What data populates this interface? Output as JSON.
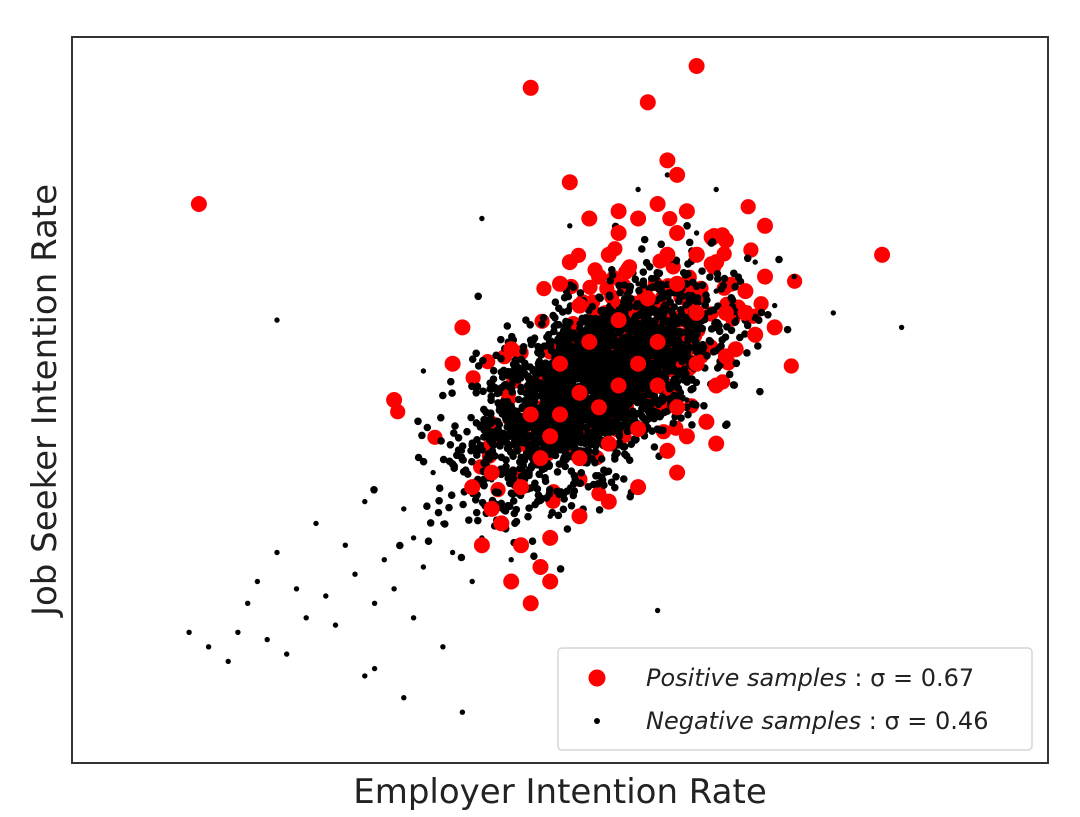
{
  "chart_data": {
    "type": "scatter",
    "title": "",
    "xlabel": "Employer Intention Rate",
    "ylabel": "Job Seeker Intention Rate",
    "xlim": [
      0,
      1
    ],
    "ylim": [
      0,
      1
    ],
    "grid": false,
    "ticks_visible": false,
    "legend": {
      "placement": "bottom-right",
      "entries": [
        {
          "series": "positive",
          "name_italic": "Positive samples",
          "sigma_text": " : σ = 0.67"
        },
        {
          "series": "negative",
          "name_italic": "Negative samples",
          "sigma_text": " : σ = 0.46"
        }
      ]
    },
    "colors": {
      "positive": "#ff0000",
      "negative": "#000000",
      "frame": "#333333",
      "legend_border": "#d6d6d6"
    },
    "series": [
      {
        "key": "negative",
        "sigma": 0.46,
        "marker": "small-dot",
        "points": [
          [
            0.12,
            0.18
          ],
          [
            0.14,
            0.16
          ],
          [
            0.16,
            0.14
          ],
          [
            0.17,
            0.18
          ],
          [
            0.18,
            0.22
          ],
          [
            0.19,
            0.25
          ],
          [
            0.2,
            0.17
          ],
          [
            0.21,
            0.29
          ],
          [
            0.22,
            0.15
          ],
          [
            0.23,
            0.24
          ],
          [
            0.24,
            0.2
          ],
          [
            0.25,
            0.33
          ],
          [
            0.26,
            0.23
          ],
          [
            0.27,
            0.19
          ],
          [
            0.28,
            0.3
          ],
          [
            0.29,
            0.26
          ],
          [
            0.3,
            0.36
          ],
          [
            0.31,
            0.13
          ],
          [
            0.31,
            0.22
          ],
          [
            0.32,
            0.28
          ],
          [
            0.33,
            0.24
          ],
          [
            0.34,
            0.35
          ],
          [
            0.35,
            0.31
          ],
          [
            0.35,
            0.2
          ],
          [
            0.36,
            0.27
          ],
          [
            0.37,
            0.4
          ],
          [
            0.38,
            0.33
          ],
          [
            0.38,
            0.16
          ],
          [
            0.39,
            0.29
          ],
          [
            0.4,
            0.43
          ],
          [
            0.41,
            0.37
          ],
          [
            0.41,
            0.25
          ],
          [
            0.42,
            0.31
          ],
          [
            0.43,
            0.48
          ],
          [
            0.43,
            0.39
          ],
          [
            0.44,
            0.35
          ],
          [
            0.45,
            0.28
          ],
          [
            0.45,
            0.52
          ],
          [
            0.46,
            0.44
          ],
          [
            0.47,
            0.41
          ],
          [
            0.48,
            0.36
          ],
          [
            0.48,
            0.56
          ],
          [
            0.49,
            0.47
          ],
          [
            0.5,
            0.43
          ],
          [
            0.51,
            0.51
          ],
          [
            0.51,
            0.38
          ],
          [
            0.52,
            0.55
          ],
          [
            0.53,
            0.47
          ],
          [
            0.53,
            0.6
          ],
          [
            0.54,
            0.52
          ],
          [
            0.55,
            0.49
          ],
          [
            0.55,
            0.63
          ],
          [
            0.56,
            0.56
          ],
          [
            0.57,
            0.51
          ],
          [
            0.58,
            0.59
          ],
          [
            0.58,
            0.66
          ],
          [
            0.59,
            0.54
          ],
          [
            0.6,
            0.62
          ],
          [
            0.61,
            0.57
          ],
          [
            0.62,
            0.69
          ],
          [
            0.63,
            0.61
          ],
          [
            0.64,
            0.73
          ],
          [
            0.65,
            0.56
          ],
          [
            0.66,
            0.65
          ],
          [
            0.68,
            0.61
          ],
          [
            0.7,
            0.69
          ],
          [
            0.72,
            0.63
          ],
          [
            0.74,
            0.67
          ],
          [
            0.42,
            0.75
          ],
          [
            0.45,
            0.53
          ],
          [
            0.51,
            0.74
          ],
          [
            0.58,
            0.79
          ],
          [
            0.61,
            0.81
          ],
          [
            0.63,
            0.5
          ],
          [
            0.66,
            0.79
          ],
          [
            0.21,
            0.61
          ],
          [
            0.36,
            0.54
          ],
          [
            0.3,
            0.12
          ],
          [
            0.34,
            0.09
          ],
          [
            0.4,
            0.07
          ],
          [
            0.78,
            0.62
          ],
          [
            0.85,
            0.6
          ],
          [
            0.6,
            0.21
          ],
          [
            0.49,
            0.34
          ],
          [
            0.52,
            0.43
          ],
          [
            0.55,
            0.45
          ],
          [
            0.57,
            0.47
          ],
          [
            0.56,
            0.53
          ],
          [
            0.53,
            0.5
          ],
          [
            0.5,
            0.52
          ],
          [
            0.48,
            0.49
          ],
          [
            0.47,
            0.58
          ],
          [
            0.46,
            0.5
          ],
          [
            0.59,
            0.49
          ],
          [
            0.61,
            0.55
          ]
        ]
      },
      {
        "key": "positive",
        "sigma": 0.67,
        "marker": "large-dot",
        "points": [
          [
            0.13,
            0.77
          ],
          [
            0.47,
            0.93
          ],
          [
            0.59,
            0.91
          ],
          [
            0.64,
            0.96
          ],
          [
            0.61,
            0.83
          ],
          [
            0.51,
            0.8
          ],
          [
            0.53,
            0.75
          ],
          [
            0.56,
            0.73
          ],
          [
            0.56,
            0.76
          ],
          [
            0.58,
            0.75
          ],
          [
            0.6,
            0.77
          ],
          [
            0.62,
            0.81
          ],
          [
            0.62,
            0.73
          ],
          [
            0.64,
            0.7
          ],
          [
            0.66,
            0.69
          ],
          [
            0.71,
            0.74
          ],
          [
            0.71,
            0.67
          ],
          [
            0.83,
            0.7
          ],
          [
            0.72,
            0.6
          ],
          [
            0.4,
            0.6
          ],
          [
            0.45,
            0.57
          ],
          [
            0.39,
            0.55
          ],
          [
            0.33,
            0.5
          ],
          [
            0.49,
            0.45
          ],
          [
            0.52,
            0.42
          ],
          [
            0.55,
            0.44
          ],
          [
            0.58,
            0.46
          ],
          [
            0.61,
            0.43
          ],
          [
            0.63,
            0.45
          ],
          [
            0.65,
            0.47
          ],
          [
            0.66,
            0.52
          ],
          [
            0.68,
            0.57
          ],
          [
            0.67,
            0.62
          ],
          [
            0.69,
            0.65
          ],
          [
            0.7,
            0.59
          ],
          [
            0.66,
            0.44
          ],
          [
            0.62,
            0.4
          ],
          [
            0.58,
            0.38
          ],
          [
            0.55,
            0.36
          ],
          [
            0.52,
            0.34
          ],
          [
            0.49,
            0.31
          ],
          [
            0.46,
            0.3
          ],
          [
            0.48,
            0.27
          ],
          [
            0.43,
            0.35
          ],
          [
            0.44,
            0.33
          ],
          [
            0.42,
            0.3
          ],
          [
            0.45,
            0.25
          ],
          [
            0.47,
            0.22
          ],
          [
            0.49,
            0.25
          ],
          [
            0.41,
            0.38
          ],
          [
            0.43,
            0.4
          ],
          [
            0.47,
            0.48
          ],
          [
            0.5,
            0.55
          ],
          [
            0.53,
            0.58
          ],
          [
            0.56,
            0.61
          ],
          [
            0.59,
            0.64
          ],
          [
            0.57,
            0.68
          ],
          [
            0.54,
            0.67
          ],
          [
            0.52,
            0.63
          ],
          [
            0.5,
            0.66
          ],
          [
            0.62,
            0.66
          ],
          [
            0.64,
            0.62
          ],
          [
            0.6,
            0.58
          ],
          [
            0.58,
            0.55
          ],
          [
            0.56,
            0.52
          ],
          [
            0.54,
            0.49
          ],
          [
            0.52,
            0.51
          ],
          [
            0.5,
            0.48
          ],
          [
            0.48,
            0.42
          ],
          [
            0.46,
            0.38
          ],
          [
            0.6,
            0.52
          ],
          [
            0.62,
            0.49
          ],
          [
            0.64,
            0.55
          ],
          [
            0.61,
            0.7
          ],
          [
            0.55,
            0.7
          ],
          [
            0.51,
            0.69
          ],
          [
            0.63,
            0.76
          ],
          [
            0.67,
            0.72
          ],
          [
            0.69,
            0.62
          ],
          [
            0.67,
            0.56
          ]
        ]
      }
    ],
    "density_core": {
      "series": "negative",
      "center": [
        0.535,
        0.52
      ],
      "spread": [
        0.06,
        0.07
      ],
      "correlation": 0.58,
      "count": 2600
    },
    "positive_core": {
      "series": "positive",
      "center": [
        0.56,
        0.56
      ],
      "spread": [
        0.065,
        0.08
      ],
      "correlation": 0.55,
      "count": 260
    }
  }
}
